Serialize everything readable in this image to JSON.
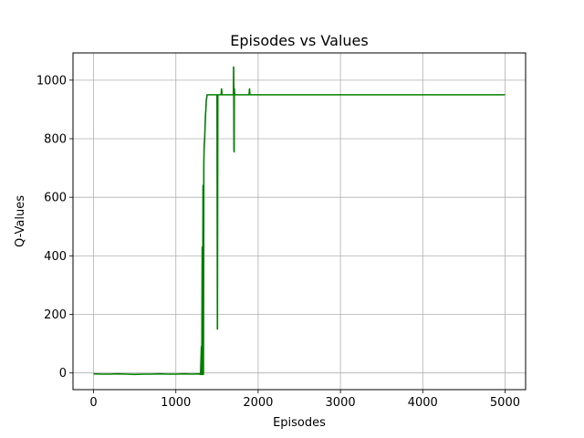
{
  "chart_data": {
    "type": "line",
    "title": "Episodes vs Values",
    "xlabel": "Episodes",
    "ylabel": "Q-Values",
    "xlim": [
      -250,
      5250
    ],
    "ylim": [
      -57,
      1093
    ],
    "xticks": [
      0,
      1000,
      2000,
      3000,
      4000,
      5000
    ],
    "yticks": [
      0,
      200,
      400,
      600,
      800,
      1000
    ],
    "grid": true,
    "colors": {
      "line": "#008000",
      "grid": "#b0b0b0",
      "axes": "#000000"
    },
    "series": [
      {
        "x": [
          0,
          100,
          200,
          300,
          400,
          500,
          600,
          700,
          800,
          900,
          1000,
          1100,
          1200,
          1280,
          1300,
          1310,
          1315,
          1320,
          1325,
          1330,
          1335,
          1340,
          1345,
          1350,
          1355,
          1360,
          1365,
          1370,
          1375,
          1380,
          1390,
          1400,
          1450,
          1500,
          1505,
          1510,
          1515,
          1520,
          1550,
          1555,
          1560,
          1600,
          1650,
          1700,
          1702,
          1704,
          1706,
          1708,
          1710,
          1712,
          1714,
          1716,
          1720,
          1800,
          1890,
          1895,
          1900,
          2000,
          3000,
          4000,
          5000
        ],
        "y": [
          -3,
          -4,
          -4,
          -3,
          -4,
          -5,
          -4,
          -4,
          -3,
          -4,
          -4,
          -3,
          -4,
          -3,
          -5,
          90,
          -5,
          430,
          -5,
          640,
          -5,
          720,
          780,
          800,
          840,
          880,
          900,
          930,
          940,
          950,
          950,
          950,
          950,
          950,
          150,
          950,
          950,
          950,
          950,
          970,
          950,
          950,
          950,
          950,
          1045,
          950,
          760,
          755,
          950,
          970,
          950,
          950,
          950,
          950,
          950,
          970,
          950,
          950,
          950,
          950,
          950
        ]
      }
    ]
  }
}
